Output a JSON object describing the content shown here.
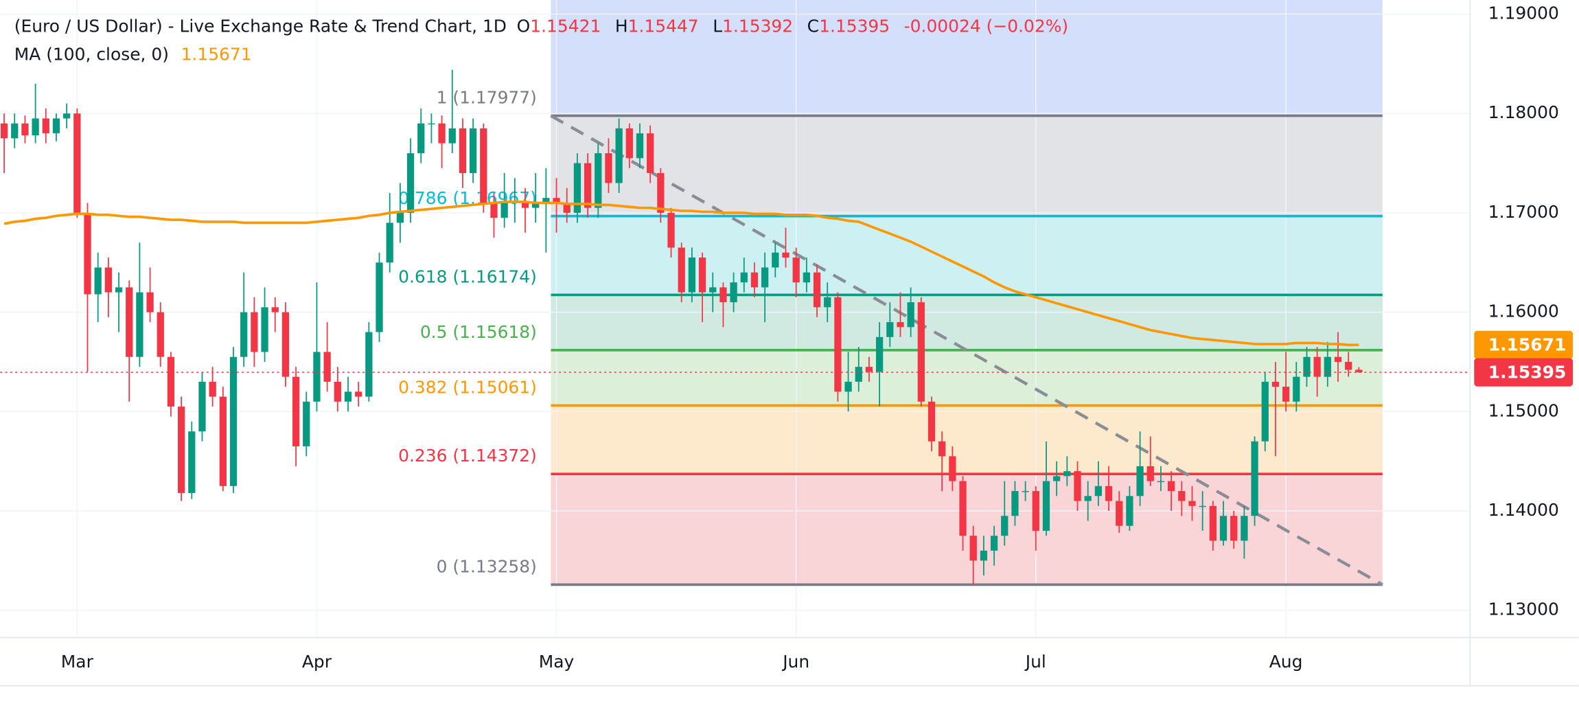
{
  "chart_data": {
    "type": "candlestick",
    "title": "(Euro / US Dollar) - Live Exchange Rate & Trend Chart, 1D",
    "ohlc_legend": [
      {
        "key": "O",
        "value": 1.15421
      },
      {
        "key": "H",
        "value": 1.15447
      },
      {
        "key": "L",
        "value": 1.15392
      },
      {
        "key": "C",
        "value": 1.15395
      }
    ],
    "change": "-0.00024 (−0.02%)",
    "legend_color": "#f23645",
    "indicator": {
      "name": "MA (100, close, 0)",
      "value": 1.15671,
      "color": "#ff9800",
      "values": [
        1.1689,
        1.1691,
        1.1692,
        1.1694,
        1.1695,
        1.1697,
        1.1698,
        1.1699,
        1.1699,
        1.1698,
        1.1698,
        1.1697,
        1.1696,
        1.1696,
        1.1695,
        1.1694,
        1.1693,
        1.1693,
        1.1692,
        1.1691,
        1.1691,
        1.1691,
        1.1691,
        1.169,
        1.169,
        1.169,
        1.169,
        1.169,
        1.169,
        1.169,
        1.1691,
        1.1692,
        1.1693,
        1.1694,
        1.1695,
        1.1697,
        1.1698,
        1.17,
        1.1701,
        1.1702,
        1.1703,
        1.1704,
        1.1705,
        1.1706,
        1.1707,
        1.1708,
        1.1709,
        1.171,
        1.1711,
        1.1711,
        1.1711,
        1.171,
        1.171,
        1.171,
        1.1709,
        1.1709,
        1.1709,
        1.1708,
        1.1708,
        1.1707,
        1.1706,
        1.1705,
        1.1705,
        1.1704,
        1.1703,
        1.1702,
        1.1702,
        1.1701,
        1.1701,
        1.17,
        1.17,
        1.17,
        1.1699,
        1.1699,
        1.1699,
        1.1698,
        1.1698,
        1.1698,
        1.1697,
        1.1695,
        1.1694,
        1.1692,
        1.1691,
        1.1687,
        1.1683,
        1.1679,
        1.1675,
        1.1671,
        1.1666,
        1.1661,
        1.1656,
        1.1651,
        1.1646,
        1.1641,
        1.1636,
        1.163,
        1.1625,
        1.1621,
        1.1618,
        1.1615,
        1.1612,
        1.1609,
        1.1606,
        1.1603,
        1.16,
        1.1597,
        1.1594,
        1.1591,
        1.1588,
        1.1585,
        1.1582,
        1.158,
        1.1578,
        1.1576,
        1.1574,
        1.1573,
        1.1572,
        1.1571,
        1.157,
        1.1569,
        1.1568,
        1.1568,
        1.1568,
        1.1568,
        1.1569,
        1.1569,
        1.1569,
        1.1568,
        1.1568,
        1.1567,
        1.15671
      ]
    },
    "categories": [
      null,
      null,
      null,
      null,
      null,
      null,
      null,
      "Mar",
      null,
      null,
      null,
      null,
      null,
      null,
      null,
      null,
      null,
      null,
      null,
      null,
      null,
      null,
      null,
      null,
      null,
      null,
      null,
      null,
      null,
      null,
      "Apr",
      null,
      null,
      null,
      null,
      null,
      null,
      null,
      null,
      null,
      null,
      null,
      null,
      null,
      null,
      null,
      null,
      null,
      null,
      null,
      null,
      null,
      null,
      "May",
      null,
      null,
      null,
      null,
      null,
      null,
      null,
      null,
      null,
      null,
      null,
      null,
      null,
      null,
      null,
      null,
      null,
      null,
      null,
      null,
      null,
      null,
      "Jun",
      null,
      null,
      null,
      null,
      null,
      null,
      null,
      null,
      null,
      null,
      null,
      null,
      null,
      null,
      null,
      null,
      null,
      null,
      null,
      null,
      null,
      null,
      "Jul",
      null,
      null,
      null,
      null,
      null,
      null,
      null,
      null,
      null,
      null,
      null,
      null,
      null,
      null,
      null,
      null,
      null,
      null,
      null,
      null,
      null,
      null,
      null,
      "Aug",
      null,
      null,
      null,
      null,
      null,
      null,
      null
    ],
    "candles": [
      [
        1.179,
        1.18,
        1.174,
        1.1775
      ],
      [
        1.1775,
        1.18,
        1.1765,
        1.179
      ],
      [
        1.179,
        1.1798,
        1.177,
        1.1778
      ],
      [
        1.1778,
        1.183,
        1.177,
        1.1795
      ],
      [
        1.1795,
        1.1805,
        1.177,
        1.178
      ],
      [
        1.178,
        1.18,
        1.1772,
        1.1795
      ],
      [
        1.1795,
        1.181,
        1.1785,
        1.18
      ],
      [
        1.18,
        1.1805,
        1.1695,
        1.17
      ],
      [
        1.17,
        1.171,
        1.154,
        1.1618
      ],
      [
        1.1618,
        1.166,
        1.159,
        1.1645
      ],
      [
        1.1645,
        1.1655,
        1.1595,
        1.162
      ],
      [
        1.162,
        1.164,
        1.158,
        1.1625
      ],
      [
        1.1625,
        1.1632,
        1.151,
        1.1555
      ],
      [
        1.1555,
        1.167,
        1.1545,
        1.162
      ],
      [
        1.162,
        1.1645,
        1.159,
        1.16
      ],
      [
        1.16,
        1.161,
        1.1545,
        1.1555
      ],
      [
        1.1555,
        1.156,
        1.1495,
        1.1505
      ],
      [
        1.1505,
        1.1515,
        1.141,
        1.1418
      ],
      [
        1.1418,
        1.149,
        1.1412,
        1.148
      ],
      [
        1.148,
        1.154,
        1.147,
        1.153
      ],
      [
        1.153,
        1.1545,
        1.1505,
        1.1515
      ],
      [
        1.1515,
        1.1525,
        1.142,
        1.1425
      ],
      [
        1.1425,
        1.1565,
        1.1418,
        1.1555
      ],
      [
        1.1555,
        1.164,
        1.1545,
        1.16
      ],
      [
        1.16,
        1.1615,
        1.1545,
        1.156
      ],
      [
        1.156,
        1.1625,
        1.155,
        1.1605
      ],
      [
        1.1605,
        1.1615,
        1.158,
        1.16
      ],
      [
        1.16,
        1.161,
        1.1525,
        1.1535
      ],
      [
        1.1535,
        1.1545,
        1.1445,
        1.1465
      ],
      [
        1.1465,
        1.152,
        1.1455,
        1.151
      ],
      [
        1.151,
        1.163,
        1.15,
        1.156
      ],
      [
        1.156,
        1.159,
        1.152,
        1.153
      ],
      [
        1.153,
        1.1545,
        1.15,
        1.151
      ],
      [
        1.151,
        1.1535,
        1.15,
        1.152
      ],
      [
        1.152,
        1.153,
        1.1505,
        1.1515
      ],
      [
        1.1515,
        1.159,
        1.151,
        1.158
      ],
      [
        1.158,
        1.166,
        1.157,
        1.165
      ],
      [
        1.165,
        1.172,
        1.164,
        1.169
      ],
      [
        1.169,
        1.173,
        1.167,
        1.17
      ],
      [
        1.17,
        1.1775,
        1.169,
        1.176
      ],
      [
        1.176,
        1.1805,
        1.175,
        1.179
      ],
      [
        1.179,
        1.18,
        1.177,
        1.179
      ],
      [
        1.179,
        1.1798,
        1.1745,
        1.177
      ],
      [
        1.177,
        1.1844,
        1.176,
        1.1785
      ],
      [
        1.1785,
        1.1795,
        1.1725,
        1.174
      ],
      [
        1.174,
        1.1795,
        1.173,
        1.1785
      ],
      [
        1.1785,
        1.179,
        1.17,
        1.171
      ],
      [
        1.171,
        1.172,
        1.1675,
        1.1695
      ],
      [
        1.1695,
        1.174,
        1.1685,
        1.171
      ],
      [
        1.171,
        1.1735,
        1.169,
        1.1712
      ],
      [
        1.1712,
        1.1725,
        1.168,
        1.1705
      ],
      [
        1.1705,
        1.174,
        1.169,
        1.171
      ],
      [
        1.171,
        1.1745,
        1.166,
        1.1715
      ],
      [
        1.1715,
        1.1735,
        1.168,
        1.171
      ],
      [
        1.171,
        1.1725,
        1.169,
        1.17
      ],
      [
        1.17,
        1.176,
        1.169,
        1.175
      ],
      [
        1.175,
        1.176,
        1.1695,
        1.1705
      ],
      [
        1.1705,
        1.177,
        1.1695,
        1.176
      ],
      [
        1.176,
        1.1775,
        1.172,
        1.173
      ],
      [
        1.173,
        1.1795,
        1.172,
        1.1785
      ],
      [
        1.1785,
        1.179,
        1.1745,
        1.1755
      ],
      [
        1.1755,
        1.179,
        1.1745,
        1.178
      ],
      [
        1.178,
        1.1788,
        1.173,
        1.174
      ],
      [
        1.174,
        1.1745,
        1.169,
        1.17
      ],
      [
        1.17,
        1.1705,
        1.1655,
        1.1665
      ],
      [
        1.1665,
        1.167,
        1.161,
        1.162
      ],
      [
        1.162,
        1.1665,
        1.161,
        1.1655
      ],
      [
        1.1655,
        1.166,
        1.159,
        1.162
      ],
      [
        1.162,
        1.164,
        1.16,
        1.1625
      ],
      [
        1.1625,
        1.163,
        1.1585,
        1.161
      ],
      [
        1.161,
        1.164,
        1.16,
        1.163
      ],
      [
        1.163,
        1.1655,
        1.162,
        1.164
      ],
      [
        1.164,
        1.165,
        1.1615,
        1.1625
      ],
      [
        1.1625,
        1.166,
        1.159,
        1.1645
      ],
      [
        1.1645,
        1.167,
        1.1635,
        1.166
      ],
      [
        1.166,
        1.1685,
        1.1645,
        1.1655
      ],
      [
        1.1655,
        1.1665,
        1.1615,
        1.163
      ],
      [
        1.163,
        1.1655,
        1.162,
        1.164
      ],
      [
        1.164,
        1.1648,
        1.1595,
        1.1605
      ],
      [
        1.1605,
        1.163,
        1.159,
        1.1615
      ],
      [
        1.1615,
        1.162,
        1.151,
        1.152
      ],
      [
        1.152,
        1.156,
        1.15,
        1.153
      ],
      [
        1.153,
        1.1565,
        1.152,
        1.1545
      ],
      [
        1.1545,
        1.1555,
        1.153,
        1.154
      ],
      [
        1.154,
        1.159,
        1.1505,
        1.1575
      ],
      [
        1.1575,
        1.161,
        1.1565,
        1.159
      ],
      [
        1.159,
        1.162,
        1.1575,
        1.1585
      ],
      [
        1.1585,
        1.1625,
        1.1575,
        1.161
      ],
      [
        1.161,
        1.1615,
        1.1505,
        1.151
      ],
      [
        1.151,
        1.1515,
        1.146,
        1.147
      ],
      [
        1.147,
        1.148,
        1.142,
        1.1455
      ],
      [
        1.1455,
        1.1465,
        1.142,
        1.143
      ],
      [
        1.143,
        1.1435,
        1.136,
        1.1375
      ],
      [
        1.1375,
        1.1385,
        1.1326,
        1.135
      ],
      [
        1.135,
        1.1375,
        1.1335,
        1.136
      ],
      [
        1.136,
        1.1385,
        1.1345,
        1.1375
      ],
      [
        1.1375,
        1.143,
        1.1365,
        1.1395
      ],
      [
        1.1395,
        1.143,
        1.1385,
        1.142
      ],
      [
        1.142,
        1.143,
        1.141,
        1.142
      ],
      [
        1.142,
        1.1425,
        1.136,
        1.138
      ],
      [
        1.138,
        1.147,
        1.1375,
        1.143
      ],
      [
        1.143,
        1.145,
        1.1415,
        1.1435
      ],
      [
        1.1435,
        1.1455,
        1.1425,
        1.144
      ],
      [
        1.144,
        1.145,
        1.14,
        1.141
      ],
      [
        1.141,
        1.143,
        1.139,
        1.1415
      ],
      [
        1.1415,
        1.145,
        1.1405,
        1.1425
      ],
      [
        1.1425,
        1.1445,
        1.14,
        1.141
      ],
      [
        1.141,
        1.142,
        1.1378,
        1.1385
      ],
      [
        1.1385,
        1.1425,
        1.138,
        1.1415
      ],
      [
        1.1415,
        1.148,
        1.1405,
        1.1445
      ],
      [
        1.1445,
        1.1475,
        1.1425,
        1.143
      ],
      [
        1.143,
        1.1445,
        1.142,
        1.143
      ],
      [
        1.143,
        1.144,
        1.14,
        1.142
      ],
      [
        1.142,
        1.143,
        1.1395,
        1.141
      ],
      [
        1.141,
        1.1425,
        1.139,
        1.1405
      ],
      [
        1.1405,
        1.142,
        1.138,
        1.1405
      ],
      [
        1.1405,
        1.141,
        1.136,
        1.137
      ],
      [
        1.137,
        1.141,
        1.1365,
        1.1395
      ],
      [
        1.1395,
        1.14,
        1.1362,
        1.137
      ],
      [
        1.137,
        1.1405,
        1.1352,
        1.1395
      ],
      [
        1.1395,
        1.1475,
        1.1385,
        1.147
      ],
      [
        1.147,
        1.154,
        1.146,
        1.153
      ],
      [
        1.153,
        1.155,
        1.1455,
        1.1525
      ],
      [
        1.1525,
        1.156,
        1.15,
        1.151
      ],
      [
        1.151,
        1.155,
        1.15,
        1.1535
      ],
      [
        1.1535,
        1.1565,
        1.1525,
        1.1555
      ],
      [
        1.1555,
        1.1565,
        1.1515,
        1.1535
      ],
      [
        1.1535,
        1.157,
        1.1525,
        1.1555
      ],
      [
        1.1555,
        1.158,
        1.153,
        1.155
      ],
      [
        1.155,
        1.156,
        1.1535,
        1.1542
      ],
      [
        1.15421,
        1.15447,
        1.15392,
        1.15395
      ]
    ],
    "up_color": "#089981",
    "down_color": "#f23645",
    "ylim": [
      1.12726,
      1.19142
    ],
    "yticks": [
      {
        "value": 1.13,
        "label": "1.13000"
      },
      {
        "value": 1.14,
        "label": "1.14000"
      },
      {
        "value": 1.15,
        "label": "1.15000"
      },
      {
        "value": 1.16,
        "label": "1.16000"
      },
      {
        "value": 1.17,
        "label": "1.17000"
      },
      {
        "value": 1.18,
        "label": "1.18000"
      },
      {
        "value": 1.19,
        "label": "1.19000"
      }
    ],
    "grid": true,
    "fib": {
      "top_fill": "#d3dffb",
      "trendline_color": "#8a8d96",
      "levels": [
        {
          "price": 1.17977,
          "label": "1 (1.17977)",
          "color": "#787b86",
          "fill": "#e2e3e6"
        },
        {
          "price": 1.16967,
          "label": "0.786 (1.16967)",
          "color": "#00bcd4",
          "fill": "#cdf1f3"
        },
        {
          "price": 1.16174,
          "label": "0.618 (1.16174)",
          "color": "#089981",
          "fill": "#d0e9e1"
        },
        {
          "price": 1.15618,
          "label": "0.5 (1.15618)",
          "color": "#4caf50",
          "fill": "#dbefd9"
        },
        {
          "price": 1.15061,
          "label": "0.382 (1.15061)",
          "color": "#ff9800",
          "fill": "#fde9cc"
        },
        {
          "price": 1.14372,
          "label": "0.236 (1.14372)",
          "color": "#f23645",
          "fill": "#f9d5d8"
        },
        {
          "price": 1.13258,
          "label": "0 (1.13258)",
          "color": "#787b86"
        }
      ]
    },
    "price_labels": [
      {
        "value": 1.15671,
        "color": "#ff9800"
      },
      {
        "value": 1.15395,
        "color": "#f23645"
      }
    ]
  }
}
